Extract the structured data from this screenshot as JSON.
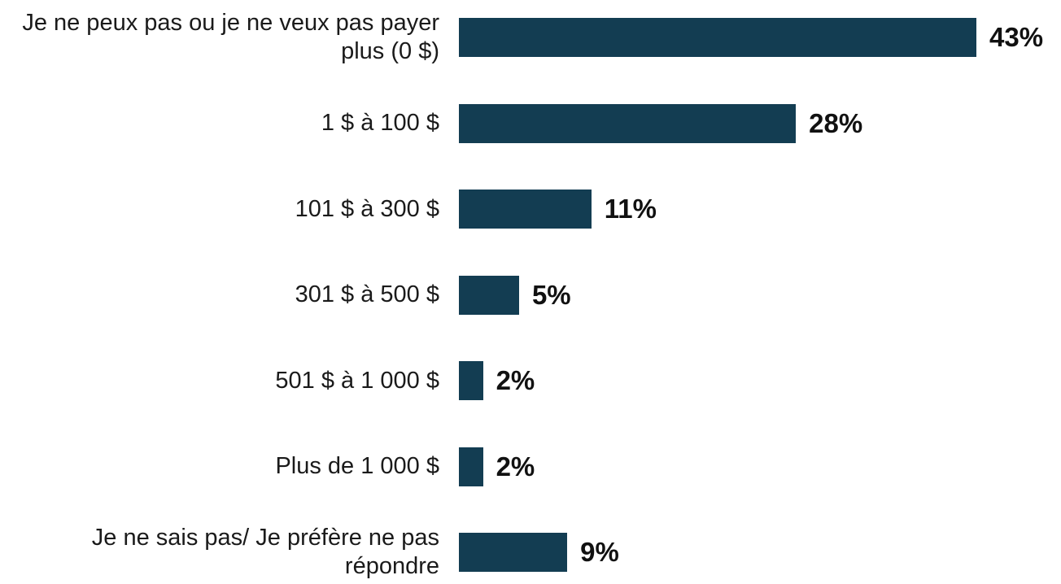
{
  "chart_data": {
    "type": "bar",
    "orientation": "horizontal",
    "categories": [
      "Je ne peux pas ou je ne veux pas payer plus (0 $)",
      "1 $ à 100 $",
      "101 $ à 300 $",
      "301 $ à 500 $",
      "501 $ à 1 000 $",
      "Plus de 1 000 $",
      "Je ne sais pas/ Je préfère ne pas répondre"
    ],
    "values": [
      43,
      28,
      11,
      5,
      2,
      2,
      9
    ],
    "value_labels": [
      "43%",
      "28%",
      "11%",
      "5%",
      "2%",
      "2%",
      "9%"
    ],
    "color": "#133d52"
  }
}
